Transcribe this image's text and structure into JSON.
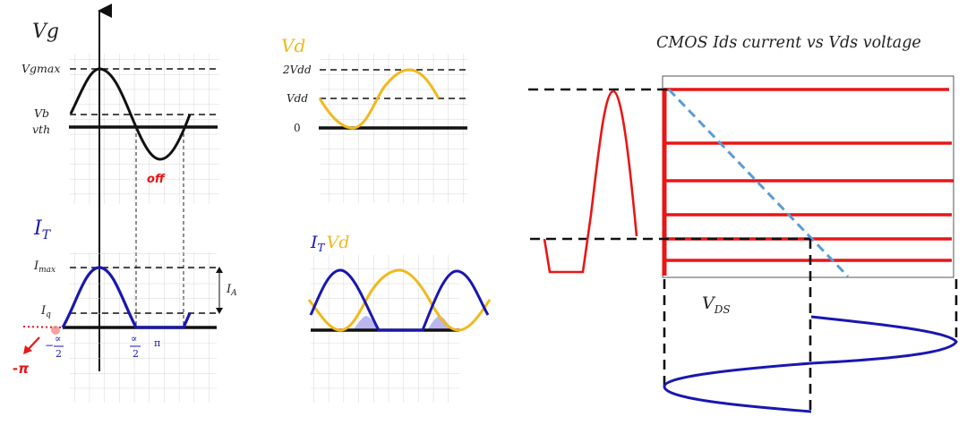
{
  "colors": {
    "black": "#111111",
    "blue": "#1a17b0",
    "gold": "#f2b81c",
    "red": "#e81616",
    "light_blue": "#5b9bd5",
    "shade": "#b9b6f0"
  },
  "panel_vg": {
    "title": "Vg",
    "vgmax": "Vgmax",
    "vb": "Vb",
    "vth": "vth",
    "off": "off"
  },
  "panel_it": {
    "title_main": "I",
    "title_sub": "T",
    "imax_main": "I",
    "imax_sub": "max",
    "iq_main": "I",
    "iq_sub": "q",
    "ia_main": "I",
    "ia_sub": "A",
    "neg_alpha_sign": "−",
    "alpha": "∝",
    "two": "2",
    "pi": "π",
    "neg_pi": "-π"
  },
  "panel_vd": {
    "title": "Vd",
    "two_vdd": "2Vdd",
    "vdd": "Vdd",
    "zero": "0"
  },
  "panel_itvd": {
    "it_main": "I",
    "it_sub": "T",
    "vd": "Vd"
  },
  "panel_cmos": {
    "title": "CMOS Ids current vs Vds voltage",
    "vds_main": "V",
    "vds_sub": "DS"
  }
}
